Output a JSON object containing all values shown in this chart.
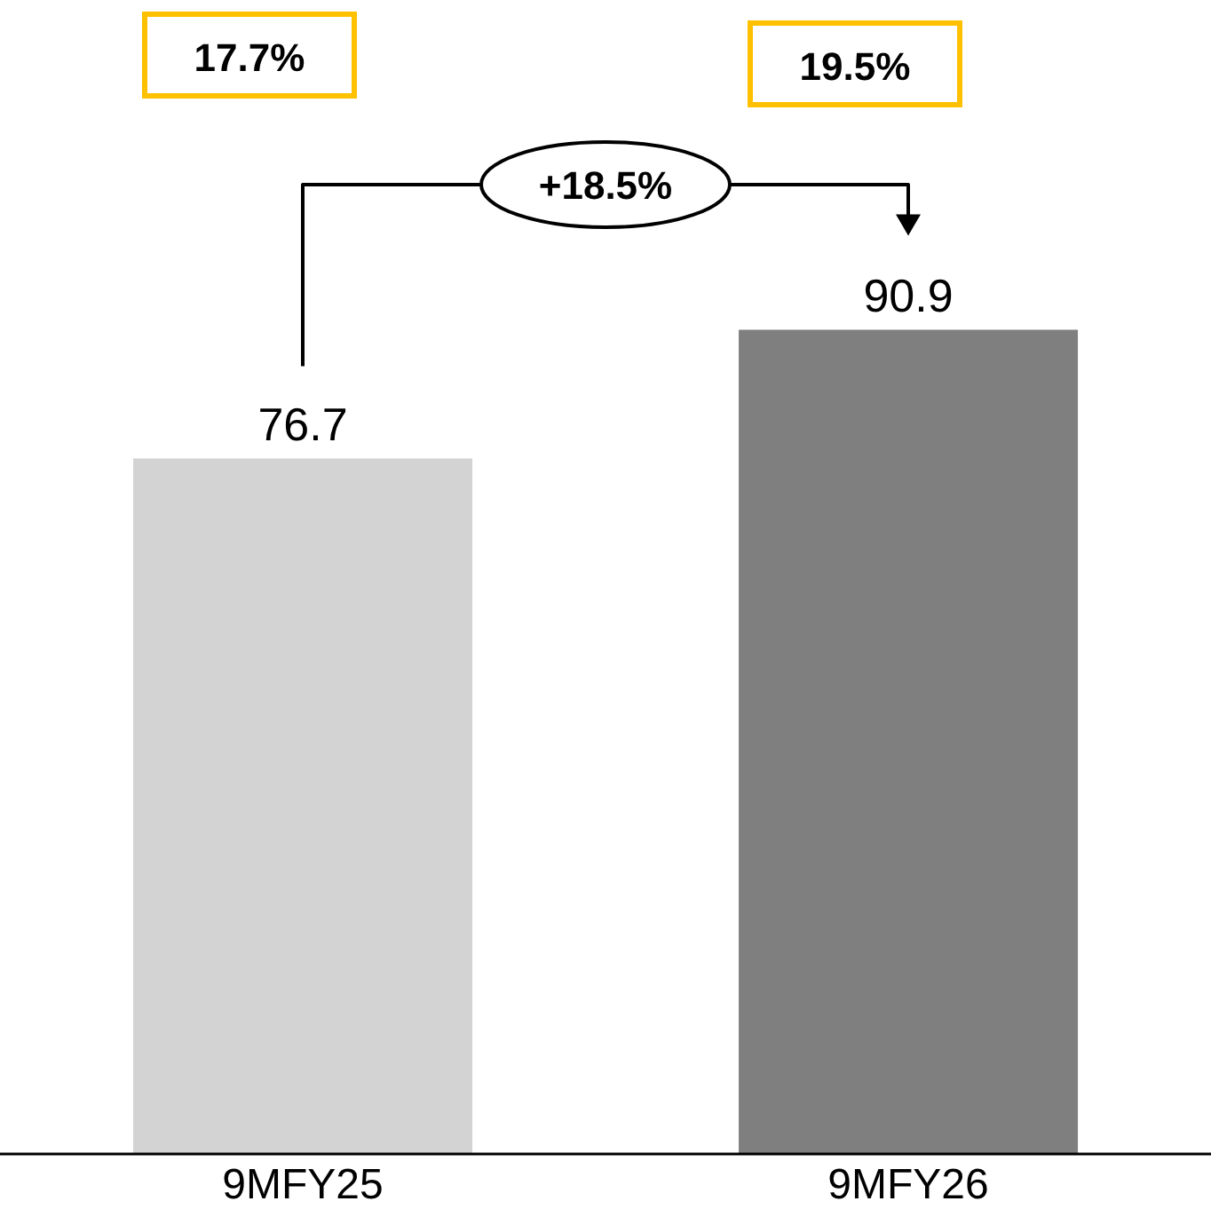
{
  "chart_data": {
    "type": "bar",
    "categories": [
      "9MFY25",
      "9MFY26"
    ],
    "values": [
      76.7,
      90.9
    ],
    "colors": [
      "#d3d3d3",
      "#7f7f7f"
    ],
    "tick_labels": "x",
    "data_labels": true,
    "annotations": [
      "17.7%",
      "19.5%",
      "+18.5%"
    ]
  }
}
